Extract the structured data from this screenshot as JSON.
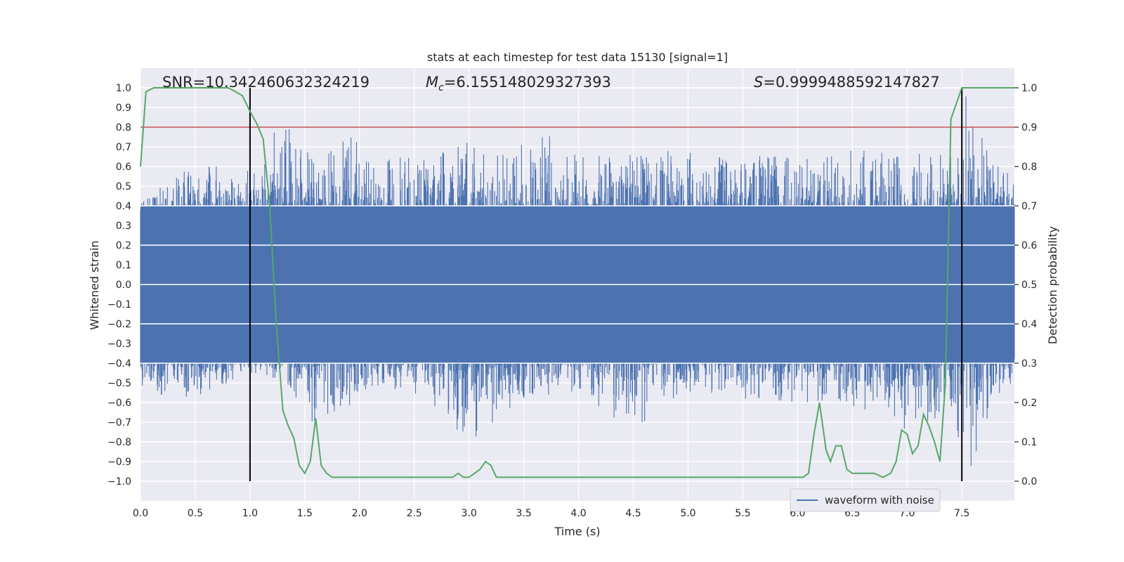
{
  "chart_data": {
    "type": "line",
    "title": "stats at each timestep for test data 15130 [signal=1]",
    "xlabel": "Time (s)",
    "ylabel_left": "Whitened strain",
    "ylabel_right": "Detection probability",
    "xlim": [
      0.0,
      7.98
    ],
    "ylim_left": [
      -1.1,
      1.1
    ],
    "ylim_right": [
      -0.05,
      1.05
    ],
    "x_ticks": [
      "0.0",
      "0.5",
      "1.0",
      "1.5",
      "2.0",
      "2.5",
      "3.0",
      "3.5",
      "4.0",
      "4.5",
      "5.0",
      "5.5",
      "6.0",
      "6.5",
      "7.0",
      "7.5"
    ],
    "y_left_ticks": [
      "1.0",
      "0.9",
      "0.8",
      "0.7",
      "0.6",
      "0.5",
      "0.4",
      "0.3",
      "0.2",
      "0.1",
      "0.0",
      "-0.1",
      "-0.2",
      "-0.3",
      "-0.4",
      "-0.5",
      "-0.6",
      "-0.7",
      "-0.8",
      "-0.9",
      "-1.0"
    ],
    "y_right_ticks": [
      "1.0",
      "0.9",
      "0.8",
      "0.7",
      "0.6",
      "0.5",
      "0.4",
      "0.3",
      "0.2",
      "0.1",
      "0.0"
    ],
    "grid": true,
    "legend": {
      "position": "bottom-right",
      "entries": [
        "waveform with noise"
      ]
    },
    "annotations": {
      "snr": "SNR=10.342460632324219",
      "mc_symbol": "M",
      "mc_sub": "c",
      "mc_value": "=6.155148029327393",
      "s_symbol": "S",
      "s_value": "=0.9999488592147827"
    },
    "threshold": {
      "value": 0.9,
      "axis": "right",
      "color": "#c44e52"
    },
    "event_markers": {
      "x": [
        1.0,
        7.5
      ],
      "y_range_right": [
        0.0,
        1.0
      ],
      "color": "#000000"
    },
    "series": [
      {
        "name": "waveform with noise",
        "axis": "left",
        "color": "#4c72b0",
        "description_envelope": [
          [
            0.0,
            0.42,
            -0.55
          ],
          [
            0.5,
            0.62,
            -0.58
          ],
          [
            1.0,
            0.6,
            -0.45
          ],
          [
            1.3,
            0.84,
            -0.5
          ],
          [
            1.6,
            0.62,
            -0.74
          ],
          [
            1.9,
            0.76,
            -0.62
          ],
          [
            2.1,
            0.67,
            -0.52
          ],
          [
            2.5,
            0.65,
            -0.55
          ],
          [
            3.0,
            0.73,
            -0.82
          ],
          [
            3.2,
            0.66,
            -0.72
          ],
          [
            3.7,
            0.8,
            -0.58
          ],
          [
            4.0,
            0.65,
            -0.55
          ],
          [
            4.5,
            0.69,
            -0.75
          ],
          [
            5.0,
            0.68,
            -0.55
          ],
          [
            5.5,
            0.72,
            -0.58
          ],
          [
            6.0,
            0.68,
            -0.6
          ],
          [
            6.5,
            0.72,
            -0.62
          ],
          [
            7.0,
            0.66,
            -0.77
          ],
          [
            7.3,
            0.74,
            -0.7
          ],
          [
            7.5,
            0.96,
            -0.88
          ],
          [
            7.6,
            1.0,
            -0.95
          ],
          [
            7.8,
            0.72,
            -0.6
          ],
          [
            7.98,
            0.5,
            -0.5
          ]
        ]
      },
      {
        "name": "Detection probability",
        "axis": "right",
        "color": "#55a868",
        "x": [
          0.0,
          0.05,
          0.12,
          0.2,
          0.3,
          0.4,
          0.5,
          0.6,
          0.7,
          0.8,
          0.87,
          0.93,
          1.0,
          1.06,
          1.12,
          1.18,
          1.24,
          1.3,
          1.35,
          1.4,
          1.45,
          1.5,
          1.55,
          1.6,
          1.65,
          1.7,
          1.75,
          1.8,
          1.87,
          2.0,
          2.2,
          2.4,
          2.6,
          2.75,
          2.85,
          2.9,
          2.95,
          3.0,
          3.05,
          3.1,
          3.15,
          3.2,
          3.25,
          3.3,
          3.4,
          3.6,
          3.8,
          4.0,
          4.2,
          4.4,
          4.5,
          4.6,
          4.7,
          4.8,
          4.9,
          5.0,
          5.2,
          5.4,
          5.6,
          5.8,
          6.0,
          6.05,
          6.1,
          6.15,
          6.2,
          6.26,
          6.3,
          6.35,
          6.4,
          6.45,
          6.5,
          6.55,
          6.6,
          6.65,
          6.7,
          6.78,
          6.85,
          6.9,
          6.95,
          7.0,
          7.05,
          7.1,
          7.15,
          7.2,
          7.25,
          7.3,
          7.35,
          7.4,
          7.45,
          7.5,
          7.55,
          7.6,
          7.65,
          7.7,
          7.8,
          7.9,
          7.98
        ],
        "y": [
          0.8,
          0.99,
          1.0,
          1.0,
          1.0,
          1.0,
          1.0,
          1.0,
          1.0,
          1.0,
          0.99,
          0.98,
          0.94,
          0.91,
          0.87,
          0.7,
          0.4,
          0.18,
          0.14,
          0.11,
          0.04,
          0.02,
          0.05,
          0.16,
          0.04,
          0.02,
          0.01,
          0.01,
          0.01,
          0.01,
          0.01,
          0.01,
          0.01,
          0.01,
          0.01,
          0.02,
          0.01,
          0.01,
          0.02,
          0.03,
          0.05,
          0.04,
          0.01,
          0.01,
          0.01,
          0.01,
          0.01,
          0.01,
          0.01,
          0.01,
          0.01,
          0.01,
          0.01,
          0.01,
          0.01,
          0.01,
          0.01,
          0.01,
          0.01,
          0.01,
          0.01,
          0.01,
          0.02,
          0.12,
          0.2,
          0.08,
          0.05,
          0.09,
          0.09,
          0.03,
          0.02,
          0.02,
          0.02,
          0.02,
          0.02,
          0.01,
          0.02,
          0.05,
          0.13,
          0.12,
          0.07,
          0.09,
          0.17,
          0.14,
          0.1,
          0.05,
          0.25,
          0.92,
          0.96,
          1.0,
          1.0,
          1.0,
          1.0,
          1.0,
          1.0,
          1.0,
          1.0
        ]
      }
    ]
  }
}
